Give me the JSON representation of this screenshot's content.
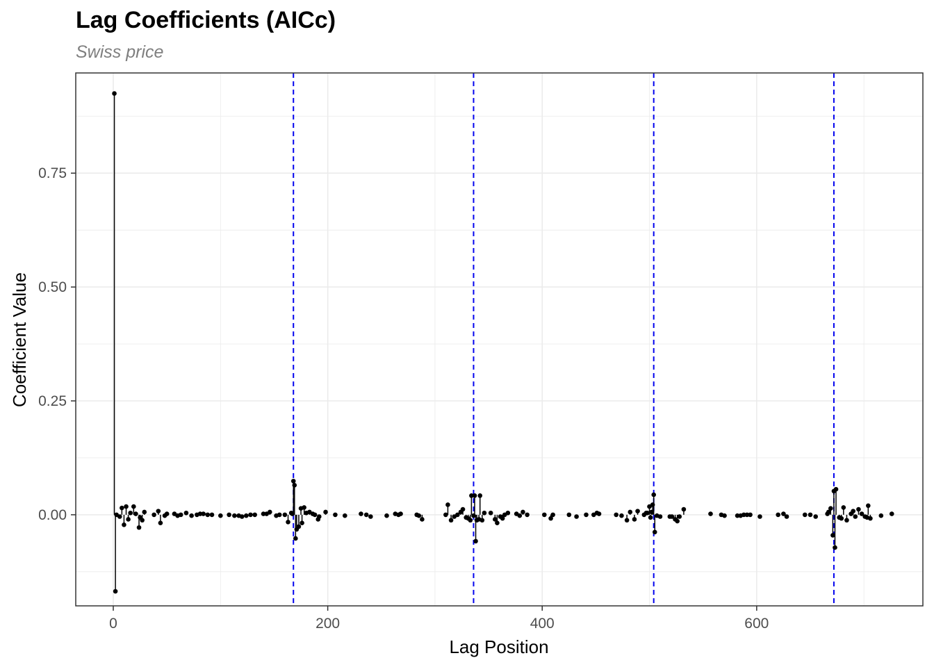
{
  "chart_data": {
    "type": "scatter",
    "style": "lollipop",
    "title": "Lag Coefficients (AICc)",
    "subtitle": "Swiss price",
    "xlabel": "Lag Position",
    "ylabel": "Coefficient Value",
    "xlim": [
      -35,
      755
    ],
    "ylim": [
      -0.2,
      0.97
    ],
    "x_ticks": [
      0,
      200,
      400,
      600
    ],
    "x_tick_labels": [
      "0",
      "200",
      "400",
      "600"
    ],
    "y_ticks": [
      0.0,
      0.25,
      0.5,
      0.75
    ],
    "y_tick_labels": [
      "0.00",
      "0.25",
      "0.50",
      "0.75"
    ],
    "grid": true,
    "legend": "none",
    "colors": {
      "points": "#000000",
      "reference_lines": "#0000ee",
      "grid": "#ebebeb"
    },
    "reference_lines_x": [
      168,
      336,
      504,
      672
    ],
    "points": [
      [
        1,
        0.925
      ],
      [
        2,
        -0.168
      ],
      [
        3,
        0.0
      ],
      [
        6,
        -0.004
      ],
      [
        8,
        0.015
      ],
      [
        10,
        -0.022
      ],
      [
        12,
        0.018
      ],
      [
        14,
        -0.01
      ],
      [
        16,
        0.004
      ],
      [
        19,
        0.018
      ],
      [
        21,
        0.002
      ],
      [
        24,
        -0.028
      ],
      [
        25,
        -0.006
      ],
      [
        27,
        -0.012
      ],
      [
        29,
        0.006
      ],
      [
        38,
        0.0
      ],
      [
        42,
        0.008
      ],
      [
        44,
        -0.018
      ],
      [
        48,
        -0.002
      ],
      [
        50,
        0.002
      ],
      [
        57,
        0.002
      ],
      [
        60,
        -0.002
      ],
      [
        63,
        0.0
      ],
      [
        68,
        0.004
      ],
      [
        73,
        -0.002
      ],
      [
        78,
        0.0
      ],
      [
        81,
        0.002
      ],
      [
        84,
        0.002
      ],
      [
        88,
        0.0
      ],
      [
        92,
        0.0
      ],
      [
        100,
        -0.002
      ],
      [
        108,
        0.0
      ],
      [
        113,
        -0.002
      ],
      [
        117,
        -0.002
      ],
      [
        120,
        -0.004
      ],
      [
        124,
        -0.002
      ],
      [
        128,
        0.0
      ],
      [
        132,
        0.0
      ],
      [
        140,
        0.002
      ],
      [
        143,
        0.002
      ],
      [
        146,
        0.006
      ],
      [
        152,
        -0.002
      ],
      [
        155,
        0.0
      ],
      [
        160,
        0.0
      ],
      [
        163,
        -0.016
      ],
      [
        166,
        0.004
      ],
      [
        167,
        0.002
      ],
      [
        168,
        0.074
      ],
      [
        169,
        0.065
      ],
      [
        170,
        -0.052
      ],
      [
        171,
        -0.032
      ],
      [
        173,
        -0.026
      ],
      [
        175,
        0.014
      ],
      [
        176,
        -0.018
      ],
      [
        178,
        0.016
      ],
      [
        180,
        0.004
      ],
      [
        183,
        0.006
      ],
      [
        186,
        0.002
      ],
      [
        188,
        0.0
      ],
      [
        191,
        -0.01
      ],
      [
        192,
        -0.004
      ],
      [
        198,
        0.006
      ],
      [
        207,
        0.0
      ],
      [
        216,
        -0.002
      ],
      [
        231,
        0.002
      ],
      [
        236,
        0.0
      ],
      [
        240,
        -0.004
      ],
      [
        255,
        -0.002
      ],
      [
        263,
        0.002
      ],
      [
        266,
        0.0
      ],
      [
        268,
        0.002
      ],
      [
        283,
        0.0
      ],
      [
        285,
        -0.002
      ],
      [
        288,
        -0.01
      ],
      [
        310,
        0.0
      ],
      [
        312,
        0.022
      ],
      [
        315,
        -0.012
      ],
      [
        318,
        -0.004
      ],
      [
        321,
        0.0
      ],
      [
        324,
        0.006
      ],
      [
        326,
        0.012
      ],
      [
        329,
        -0.006
      ],
      [
        331,
        -0.008
      ],
      [
        333,
        -0.012
      ],
      [
        334,
        0.042
      ],
      [
        336,
        -0.002
      ],
      [
        337,
        0.042
      ],
      [
        338,
        -0.058
      ],
      [
        339,
        -0.012
      ],
      [
        341,
        -0.01
      ],
      [
        342,
        0.042
      ],
      [
        344,
        -0.012
      ],
      [
        346,
        0.004
      ],
      [
        352,
        0.004
      ],
      [
        356,
        -0.01
      ],
      [
        358,
        -0.018
      ],
      [
        361,
        -0.004
      ],
      [
        363,
        -0.008
      ],
      [
        365,
        0.0
      ],
      [
        368,
        0.004
      ],
      [
        376,
        0.002
      ],
      [
        379,
        -0.002
      ],
      [
        382,
        0.006
      ],
      [
        386,
        0.0
      ],
      [
        402,
        0.0
      ],
      [
        408,
        -0.008
      ],
      [
        410,
        0.0
      ],
      [
        425,
        0.0
      ],
      [
        432,
        -0.004
      ],
      [
        441,
        0.0
      ],
      [
        448,
        0.0
      ],
      [
        451,
        0.004
      ],
      [
        453,
        0.002
      ],
      [
        469,
        0.0
      ],
      [
        474,
        -0.002
      ],
      [
        479,
        -0.012
      ],
      [
        482,
        0.006
      ],
      [
        486,
        -0.01
      ],
      [
        489,
        0.008
      ],
      [
        495,
        0.0
      ],
      [
        497,
        0.004
      ],
      [
        498,
        0.004
      ],
      [
        500,
        0.018
      ],
      [
        501,
        -0.006
      ],
      [
        502,
        0.006
      ],
      [
        503,
        0.022
      ],
      [
        504,
        0.044
      ],
      [
        505,
        -0.038
      ],
      [
        507,
        -0.002
      ],
      [
        510,
        -0.004
      ],
      [
        519,
        -0.004
      ],
      [
        521,
        -0.004
      ],
      [
        524,
        -0.01
      ],
      [
        526,
        -0.014
      ],
      [
        528,
        -0.004
      ],
      [
        532,
        0.012
      ],
      [
        557,
        0.002
      ],
      [
        567,
        0.0
      ],
      [
        570,
        -0.002
      ],
      [
        582,
        -0.002
      ],
      [
        585,
        -0.002
      ],
      [
        588,
        0.0
      ],
      [
        591,
        0.0
      ],
      [
        594,
        0.0
      ],
      [
        603,
        -0.004
      ],
      [
        620,
        0.0
      ],
      [
        625,
        0.002
      ],
      [
        628,
        -0.004
      ],
      [
        645,
        0.0
      ],
      [
        650,
        0.0
      ],
      [
        655,
        -0.004
      ],
      [
        666,
        0.002
      ],
      [
        667,
        0.006
      ],
      [
        669,
        0.014
      ],
      [
        671,
        -0.045
      ],
      [
        672,
        0.052
      ],
      [
        673,
        -0.072
      ],
      [
        674,
        0.056
      ],
      [
        677,
        -0.006
      ],
      [
        679,
        -0.008
      ],
      [
        681,
        0.016
      ],
      [
        684,
        -0.012
      ],
      [
        688,
        0.002
      ],
      [
        690,
        0.008
      ],
      [
        692,
        -0.004
      ],
      [
        695,
        0.012
      ],
      [
        698,
        0.002
      ],
      [
        701,
        -0.004
      ],
      [
        703,
        -0.006
      ],
      [
        704,
        0.02
      ],
      [
        706,
        -0.008
      ],
      [
        716,
        -0.002
      ],
      [
        726,
        0.002
      ]
    ]
  }
}
